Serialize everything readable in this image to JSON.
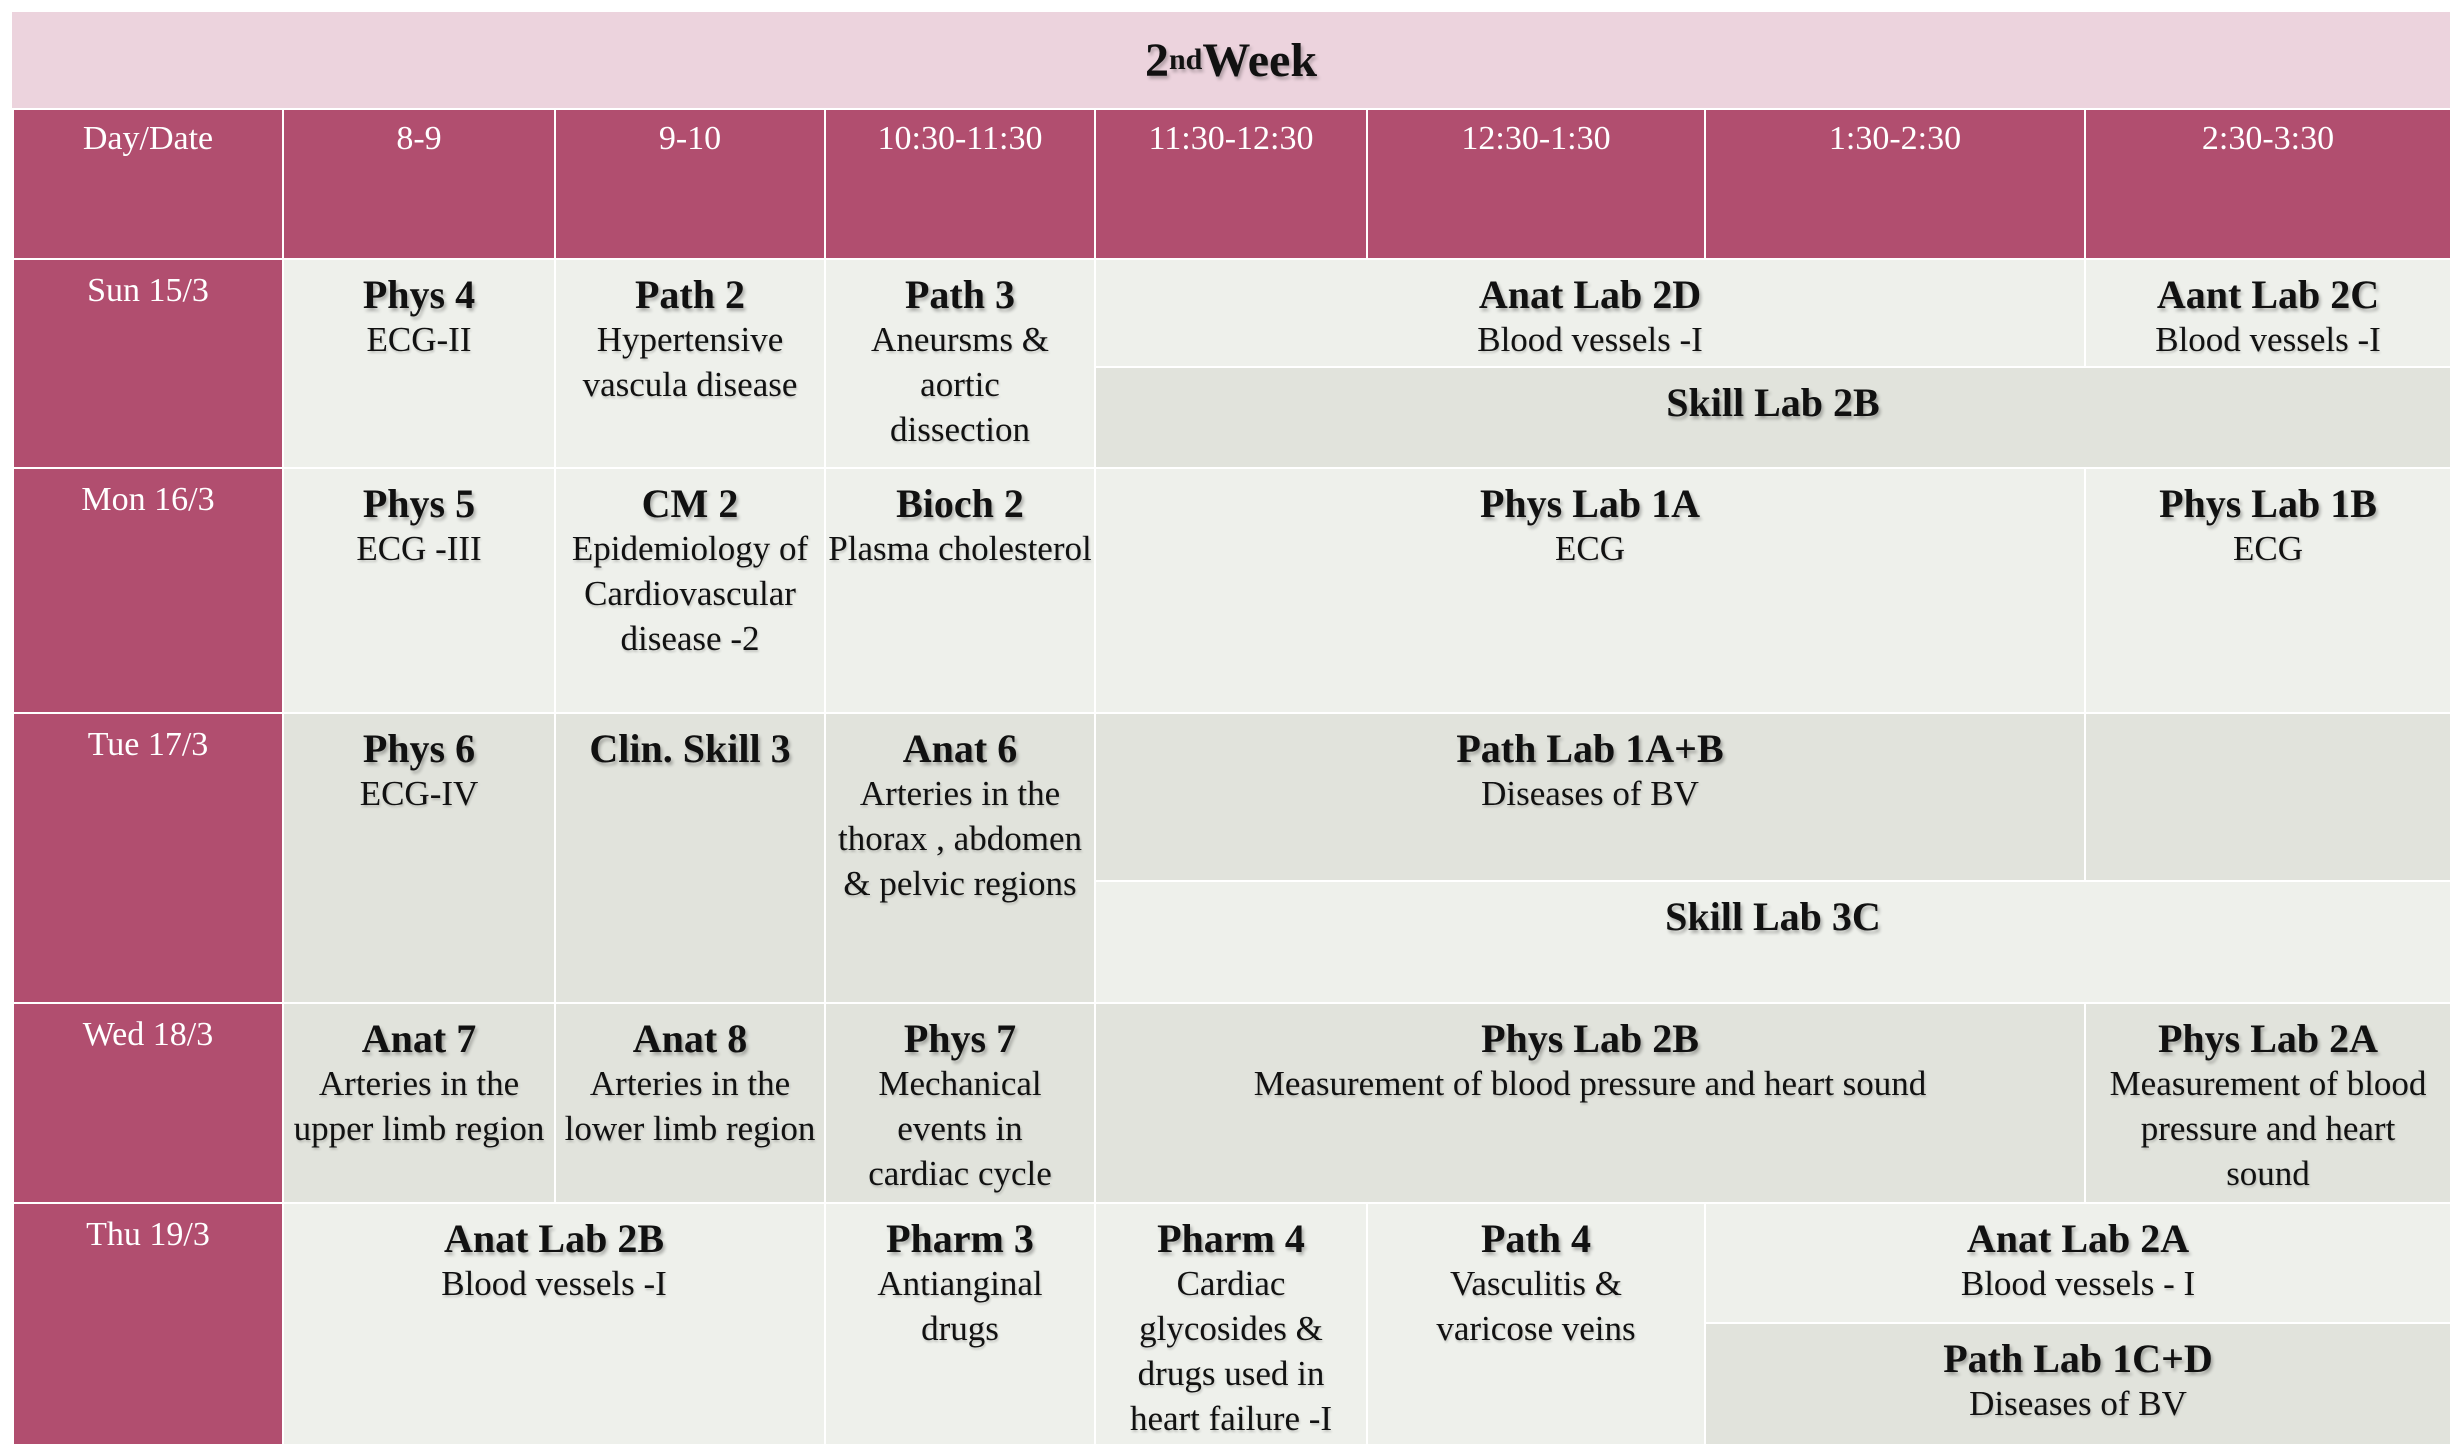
{
  "title": {
    "base": "2",
    "sup": "nd",
    "rest": " Week"
  },
  "headers": [
    "Day/Date",
    "8-9",
    "9-10",
    "10:30-11:30",
    "11:30-12:30",
    "12:30-1:30",
    "1:30-2:30",
    "2:30-3:30"
  ],
  "days": [
    "Sun 15/3",
    "Mon 16/3",
    "Tue 17/3",
    "Wed 18/3",
    "Thu 19/3"
  ],
  "sun": {
    "c1": {
      "title": "Phys 4",
      "sub": "ECG-II"
    },
    "c2": {
      "title": "Path 2",
      "sub": "Hypertensive vascula disease"
    },
    "c3": {
      "title": "Path 3",
      "sub": "Aneursms  & aortic dissection"
    },
    "c4": {
      "title": "Anat Lab 2D",
      "sub": "Blood vessels -I"
    },
    "c5": {
      "title": "Aant Lab 2C",
      "sub": "Blood vessels -I"
    },
    "c6": {
      "title": "Skill Lab 2B"
    }
  },
  "mon": {
    "c1": {
      "title": "Phys 5",
      "sub": "ECG -III"
    },
    "c2": {
      "title": "CM 2",
      "sub": "Epidemiology of Cardiovascular disease -2"
    },
    "c3": {
      "title": "Bioch 2",
      "sub": "Plasma cholesterol"
    },
    "c4": {
      "title": "Phys Lab 1A",
      "sub": "ECG"
    },
    "c5": {
      "title": "Phys Lab 1B",
      "sub": "ECG"
    }
  },
  "tue": {
    "c1": {
      "title": "Phys 6",
      "sub": "ECG-IV"
    },
    "c2": {
      "title": "Clin. Skill 3"
    },
    "c3": {
      "title": "Anat 6",
      "sub": "Arteries in the thorax , abdomen & pelvic regions"
    },
    "c4": {
      "title": "Path Lab 1A+B",
      "sub": "Diseases of BV"
    },
    "c5": {
      "title": "Skill Lab 3C"
    }
  },
  "wed": {
    "c1": {
      "title": "Anat 7",
      "sub": "Arteries in the upper limb region"
    },
    "c2": {
      "title": "Anat 8",
      "sub": "Arteries in the lower limb region"
    },
    "c3": {
      "title": "Phys 7",
      "sub": "Mechanical events in cardiac cycle"
    },
    "c4": {
      "title": "Phys Lab 2B",
      "sub": "Measurement of blood pressure and heart sound"
    },
    "c5": {
      "title": "Phys Lab 2A",
      "sub": "Measurement of blood pressure and heart sound"
    }
  },
  "thu": {
    "c1": {
      "title": "Anat Lab 2B",
      "sub": "Blood vessels -I"
    },
    "c2": {
      "title": "Pharm 3",
      "sub": "Antianginal drugs"
    },
    "c3": {
      "title": "Pharm 4",
      "sub": "Cardiac glycosides & drugs used in heart failure -I"
    },
    "c4": {
      "title": "Path 4",
      "sub": "Vasculitis & varicose veins"
    },
    "c5": {
      "title": "Anat Lab 2A",
      "sub": "Blood vessels - I"
    },
    "c6": {
      "title": "Path Lab 1C+D",
      "sub": "Diseases of BV"
    }
  },
  "colors": {
    "header": "#b14e6f",
    "title_bar": "#ecd3dd",
    "cell_light": "#eef0eb",
    "cell_dark": "#e1e3dc"
  }
}
